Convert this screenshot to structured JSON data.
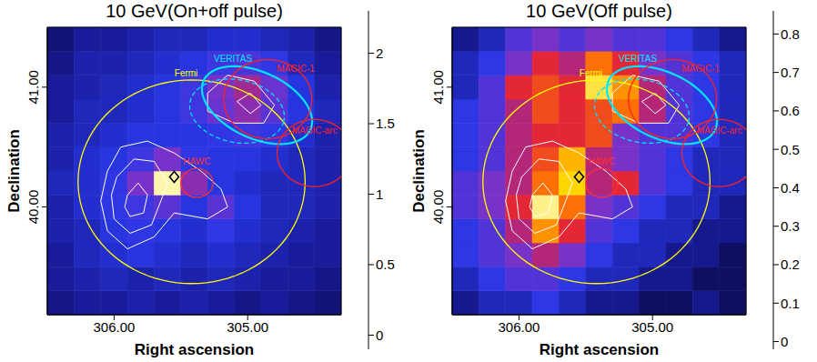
{
  "chart_data": [
    {
      "type": "heatmap",
      "title": "10 GeV(On+off pulse)",
      "x_label": "Right ascension",
      "y_label": "Declination",
      "xlim": [
        306.5,
        304.3
      ],
      "ylim": [
        39.1,
        41.5
      ],
      "xticks": [
        {
          "value": 306,
          "label": "306.00"
        },
        {
          "value": 305,
          "label": "305.00"
        }
      ],
      "yticks": [
        {
          "value": 40,
          "label": "40.00"
        },
        {
          "value": 41,
          "label": "41.00"
        }
      ],
      "cells": {
        "ra_edges": [
          306.5,
          306.3,
          306.1,
          305.9,
          305.7,
          305.5,
          305.3,
          305.1,
          304.9,
          304.7,
          304.5,
          304.3
        ],
        "dec_edges": [
          39.1,
          39.3,
          39.5,
          39.7,
          39.9,
          40.1,
          40.3,
          40.5,
          40.7,
          40.9,
          41.1,
          41.3,
          41.5
        ],
        "values": [
          [
            0.35,
            0.4,
            0.4,
            0.45,
            0.4,
            0.45,
            0.4,
            0.35,
            0.4,
            0.35,
            0.3
          ],
          [
            0.4,
            0.45,
            0.5,
            0.45,
            0.5,
            0.45,
            0.5,
            0.45,
            0.4,
            0.4,
            0.35
          ],
          [
            0.4,
            0.5,
            0.55,
            0.6,
            0.55,
            0.5,
            0.55,
            0.5,
            0.45,
            0.4,
            0.4
          ],
          [
            0.45,
            0.5,
            0.6,
            0.65,
            0.6,
            0.55,
            0.65,
            0.55,
            0.5,
            0.45,
            0.4
          ],
          [
            0.45,
            0.55,
            0.65,
            0.7,
            0.8,
            0.6,
            0.8,
            0.6,
            0.5,
            0.5,
            0.45
          ],
          [
            0.5,
            0.55,
            0.65,
            0.9,
            2.2,
            0.95,
            0.6,
            0.55,
            0.5,
            0.5,
            0.45
          ],
          [
            0.45,
            0.55,
            0.6,
            0.7,
            0.9,
            0.65,
            0.6,
            0.6,
            0.55,
            0.5,
            0.45
          ],
          [
            0.45,
            0.5,
            0.55,
            0.6,
            0.6,
            0.6,
            0.65,
            0.7,
            0.65,
            0.55,
            0.45
          ],
          [
            0.4,
            0.5,
            0.5,
            0.55,
            0.6,
            0.7,
            0.85,
            0.95,
            0.8,
            0.6,
            0.5
          ],
          [
            0.4,
            0.45,
            0.5,
            0.55,
            0.6,
            0.7,
            0.9,
            1.0,
            0.85,
            0.6,
            0.45
          ],
          [
            0.35,
            0.45,
            0.45,
            0.5,
            0.55,
            0.6,
            0.7,
            0.75,
            0.65,
            0.5,
            0.4
          ],
          [
            0.3,
            0.4,
            0.4,
            0.45,
            0.5,
            0.5,
            0.55,
            0.55,
            0.5,
            0.45,
            0.35
          ]
        ]
      },
      "colorbar": {
        "lim": [
          -0.1,
          2.3
        ],
        "ticks": [
          0,
          0.5,
          1,
          1.5,
          2
        ]
      },
      "contours": {
        "color": "#ffffff",
        "lines": [
          [
            [
              306.05,
              40.3
            ],
            [
              305.95,
              40.5
            ],
            [
              305.75,
              40.55
            ],
            [
              305.55,
              40.45
            ],
            [
              305.35,
              40.3
            ],
            [
              305.2,
              40.15
            ],
            [
              305.15,
              40.0
            ],
            [
              305.3,
              39.9
            ],
            [
              305.55,
              39.95
            ],
            [
              305.7,
              39.75
            ],
            [
              305.9,
              39.65
            ],
            [
              306.05,
              39.8
            ],
            [
              306.1,
              40.05
            ],
            [
              306.05,
              40.3
            ]
          ],
          [
            [
              305.98,
              40.25
            ],
            [
              305.85,
              40.4
            ],
            [
              305.7,
              40.38
            ],
            [
              305.6,
              40.2
            ],
            [
              305.65,
              40.05
            ],
            [
              305.72,
              39.85
            ],
            [
              305.88,
              39.78
            ],
            [
              306.0,
              39.9
            ],
            [
              306.02,
              40.1
            ],
            [
              305.98,
              40.25
            ]
          ],
          [
            [
              305.9,
              40.1
            ],
            [
              305.82,
              40.2
            ],
            [
              305.75,
              40.1
            ],
            [
              305.78,
              39.95
            ],
            [
              305.88,
              39.92
            ],
            [
              305.92,
              40.0
            ],
            [
              305.9,
              40.1
            ]
          ],
          [
            [
              305.3,
              40.95
            ],
            [
              305.15,
              41.1
            ],
            [
              304.95,
              41.05
            ],
            [
              304.8,
              40.85
            ],
            [
              304.88,
              40.7
            ],
            [
              305.1,
              40.7
            ],
            [
              305.3,
              40.8
            ],
            [
              305.3,
              40.95
            ]
          ],
          [
            [
              305.08,
              40.88
            ],
            [
              304.98,
              40.95
            ],
            [
              304.9,
              40.85
            ],
            [
              304.98,
              40.78
            ],
            [
              305.08,
              40.88
            ]
          ]
        ]
      },
      "annotations": [
        {
          "label": "Fermi",
          "shape": "circle",
          "center": [
            305.42,
            40.21
          ],
          "radius": 0.85,
          "color": "#ffff00",
          "line_style": "solid"
        },
        {
          "label": "VERITAS",
          "shape": "ellipse",
          "center": [
            304.93,
            40.85
          ],
          "semi_axes": [
            0.45,
            0.27
          ],
          "axis_angle": -30,
          "color": "#00e5ff",
          "line_style": "solid"
        },
        {
          "shape": "ellipse",
          "center": [
            305.08,
            40.8
          ],
          "semi_axes": [
            0.36,
            0.26
          ],
          "axis_angle": -15,
          "color": "#00e5ff",
          "line_style": "dashed"
        },
        {
          "label": "MAGIC-1",
          "shape": "circle",
          "center": [
            304.85,
            40.9
          ],
          "radius": 0.33,
          "color": "#ff2020",
          "line_style": "solid"
        },
        {
          "label": "MAGIC-arc",
          "shape": "circle",
          "center": [
            304.5,
            40.45
          ],
          "radius": 0.28,
          "color": "#ff2020",
          "line_style": "solid"
        },
        {
          "label": "HAWC",
          "shape": "circle",
          "center": [
            305.38,
            40.2
          ],
          "radius": 0.12,
          "color": "#ff3030",
          "line_style": "solid"
        },
        {
          "shape": "point",
          "center": [
            305.55,
            40.25
          ],
          "marker": "diamond",
          "color": "#000000"
        }
      ]
    },
    {
      "type": "heatmap",
      "title": "10 GeV(Off pulse)",
      "x_label": "Right ascension",
      "y_label": "Declination",
      "xlim": [
        306.5,
        304.3
      ],
      "ylim": [
        39.1,
        41.5
      ],
      "xticks": [
        {
          "value": 306,
          "label": "306.00"
        },
        {
          "value": 305,
          "label": "305.00"
        }
      ],
      "yticks": [
        {
          "value": 40,
          "label": "40.00"
        },
        {
          "value": 41,
          "label": "41.00"
        }
      ],
      "cells": {
        "ra_edges": [
          306.5,
          306.3,
          306.1,
          305.9,
          305.7,
          305.5,
          305.3,
          305.1,
          304.9,
          304.7,
          304.5,
          304.3
        ],
        "dec_edges": [
          39.1,
          39.3,
          39.5,
          39.7,
          39.9,
          40.1,
          40.3,
          40.5,
          40.7,
          40.9,
          41.1,
          41.3,
          41.5
        ],
        "values": [
          [
            0.15,
            0.2,
            0.2,
            0.25,
            0.2,
            0.15,
            0.15,
            0.1,
            0.1,
            0.15,
            0.1
          ],
          [
            0.2,
            0.25,
            0.3,
            0.3,
            0.25,
            0.2,
            0.2,
            0.15,
            0.15,
            0.1,
            0.1
          ],
          [
            0.25,
            0.3,
            0.35,
            0.4,
            0.35,
            0.25,
            0.2,
            0.2,
            0.15,
            0.15,
            0.1
          ],
          [
            0.25,
            0.3,
            0.4,
            0.6,
            0.45,
            0.3,
            0.25,
            0.2,
            0.2,
            0.15,
            0.15
          ],
          [
            0.3,
            0.35,
            0.45,
            0.8,
            0.55,
            0.35,
            0.3,
            0.25,
            0.2,
            0.2,
            0.15
          ],
          [
            0.3,
            0.35,
            0.4,
            0.55,
            0.7,
            0.4,
            0.45,
            0.3,
            0.25,
            0.2,
            0.2
          ],
          [
            0.25,
            0.3,
            0.4,
            0.5,
            0.65,
            0.4,
            0.35,
            0.3,
            0.25,
            0.2,
            0.2
          ],
          [
            0.25,
            0.3,
            0.4,
            0.45,
            0.45,
            0.5,
            0.35,
            0.3,
            0.3,
            0.25,
            0.2
          ],
          [
            0.25,
            0.3,
            0.4,
            0.5,
            0.45,
            0.5,
            0.55,
            0.4,
            0.3,
            0.25,
            0.2
          ],
          [
            0.2,
            0.3,
            0.45,
            0.5,
            0.45,
            0.75,
            0.6,
            0.4,
            0.3,
            0.25,
            0.2
          ],
          [
            0.2,
            0.25,
            0.35,
            0.45,
            0.4,
            0.55,
            0.45,
            0.35,
            0.3,
            0.25,
            0.2
          ],
          [
            0.15,
            0.2,
            0.3,
            0.35,
            0.3,
            0.35,
            0.3,
            0.3,
            0.25,
            0.2,
            0.15
          ]
        ]
      },
      "colorbar": {
        "lim": [
          -0.02,
          0.86
        ],
        "ticks": [
          0,
          0.1,
          0.2,
          0.3,
          0.4,
          0.5,
          0.6,
          0.7,
          0.8
        ]
      },
      "contours": {
        "color": "#ffffff",
        "lines": [
          [
            [
              306.05,
              40.3
            ],
            [
              305.95,
              40.5
            ],
            [
              305.75,
              40.55
            ],
            [
              305.55,
              40.45
            ],
            [
              305.35,
              40.3
            ],
            [
              305.2,
              40.15
            ],
            [
              305.15,
              40.0
            ],
            [
              305.3,
              39.9
            ],
            [
              305.55,
              39.95
            ],
            [
              305.7,
              39.75
            ],
            [
              305.9,
              39.65
            ],
            [
              306.05,
              39.8
            ],
            [
              306.1,
              40.05
            ],
            [
              306.05,
              40.3
            ]
          ],
          [
            [
              305.98,
              40.25
            ],
            [
              305.85,
              40.4
            ],
            [
              305.7,
              40.38
            ],
            [
              305.6,
              40.2
            ],
            [
              305.65,
              40.05
            ],
            [
              305.72,
              39.85
            ],
            [
              305.88,
              39.78
            ],
            [
              306.0,
              39.9
            ],
            [
              306.02,
              40.1
            ],
            [
              305.98,
              40.25
            ]
          ],
          [
            [
              305.9,
              40.1
            ],
            [
              305.82,
              40.2
            ],
            [
              305.75,
              40.1
            ],
            [
              305.78,
              39.95
            ],
            [
              305.88,
              39.92
            ],
            [
              305.92,
              40.0
            ],
            [
              305.9,
              40.1
            ]
          ],
          [
            [
              305.3,
              40.95
            ],
            [
              305.15,
              41.1
            ],
            [
              304.95,
              41.05
            ],
            [
              304.8,
              40.85
            ],
            [
              304.88,
              40.7
            ],
            [
              305.1,
              40.7
            ],
            [
              305.3,
              40.8
            ],
            [
              305.3,
              40.95
            ]
          ],
          [
            [
              305.08,
              40.88
            ],
            [
              304.98,
              40.95
            ],
            [
              304.9,
              40.85
            ],
            [
              304.98,
              40.78
            ],
            [
              305.08,
              40.88
            ]
          ]
        ]
      },
      "annotations": [
        {
          "label": "Fermi",
          "shape": "circle",
          "center": [
            305.42,
            40.21
          ],
          "radius": 0.85,
          "color": "#ffff00",
          "line_style": "solid"
        },
        {
          "label": "VERITAS",
          "shape": "ellipse",
          "center": [
            304.93,
            40.85
          ],
          "semi_axes": [
            0.45,
            0.27
          ],
          "axis_angle": -30,
          "color": "#00e5ff",
          "line_style": "solid"
        },
        {
          "shape": "ellipse",
          "center": [
            305.08,
            40.8
          ],
          "semi_axes": [
            0.36,
            0.26
          ],
          "axis_angle": -15,
          "color": "#00e5ff",
          "line_style": "dashed"
        },
        {
          "label": "MAGIC-1",
          "shape": "circle",
          "center": [
            304.85,
            40.9
          ],
          "radius": 0.33,
          "color": "#ff2020",
          "line_style": "solid"
        },
        {
          "label": "MAGIC-arc",
          "shape": "circle",
          "center": [
            304.5,
            40.45
          ],
          "radius": 0.28,
          "color": "#ff2020",
          "line_style": "solid"
        },
        {
          "label": "HAWC",
          "shape": "circle",
          "center": [
            305.38,
            40.2
          ],
          "radius": 0.12,
          "color": "#ff3030",
          "line_style": "solid"
        },
        {
          "shape": "point",
          "center": [
            305.55,
            40.25
          ],
          "marker": "diamond",
          "color": "#000000"
        }
      ]
    }
  ]
}
